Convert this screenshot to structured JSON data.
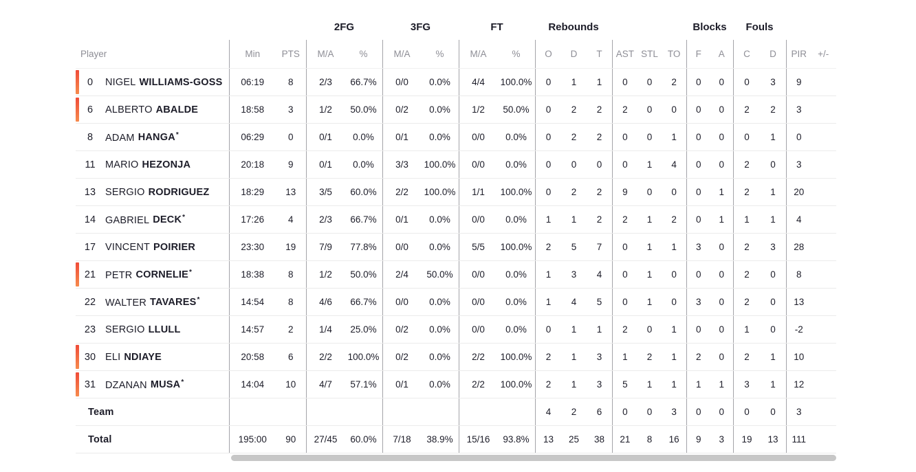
{
  "table": {
    "star_glyph": "*",
    "groups": {
      "fg2": "2FG",
      "fg3": "3FG",
      "ft": "FT",
      "rebounds": "Rebounds",
      "blocks": "Blocks",
      "fouls": "Fouls"
    },
    "col_headers": {
      "player": "Player",
      "min": "Min",
      "pts": "PTS",
      "ma": "M/A",
      "pct": "%",
      "reb_o": "O",
      "reb_d": "D",
      "reb_t": "T",
      "ast": "AST",
      "stl": "STL",
      "to": "TO",
      "blk_f": "F",
      "blk_a": "A",
      "foul_c": "C",
      "foul_d": "D",
      "pir": "PIR",
      "plus_minus": "+/-"
    },
    "rows": [
      {
        "num": "0",
        "first": "NIGEL",
        "last": "WILLIAMS-GOSS",
        "star": false,
        "on_court": true,
        "stats": {
          "min": "06:19",
          "pts": "8",
          "fg2_ma": "2/3",
          "fg2_pct": "66.7%",
          "fg3_ma": "0/0",
          "fg3_pct": "0.0%",
          "ft_ma": "4/4",
          "ft_pct": "100.0%",
          "reb_o": "0",
          "reb_d": "1",
          "reb_t": "1",
          "ast": "0",
          "stl": "0",
          "to": "2",
          "blk_f": "0",
          "blk_a": "0",
          "foul_c": "0",
          "foul_d": "3",
          "pir": "9",
          "plus_minus": ""
        }
      },
      {
        "num": "6",
        "first": "ALBERTO",
        "last": "ABALDE",
        "star": false,
        "on_court": true,
        "stats": {
          "min": "18:58",
          "pts": "3",
          "fg2_ma": "1/2",
          "fg2_pct": "50.0%",
          "fg3_ma": "0/2",
          "fg3_pct": "0.0%",
          "ft_ma": "1/2",
          "ft_pct": "50.0%",
          "reb_o": "0",
          "reb_d": "2",
          "reb_t": "2",
          "ast": "2",
          "stl": "0",
          "to": "0",
          "blk_f": "0",
          "blk_a": "0",
          "foul_c": "2",
          "foul_d": "2",
          "pir": "3",
          "plus_minus": ""
        }
      },
      {
        "num": "8",
        "first": "ADAM",
        "last": "HANGA",
        "star": true,
        "on_court": false,
        "stats": {
          "min": "06:29",
          "pts": "0",
          "fg2_ma": "0/1",
          "fg2_pct": "0.0%",
          "fg3_ma": "0/1",
          "fg3_pct": "0.0%",
          "ft_ma": "0/0",
          "ft_pct": "0.0%",
          "reb_o": "0",
          "reb_d": "2",
          "reb_t": "2",
          "ast": "0",
          "stl": "0",
          "to": "1",
          "blk_f": "0",
          "blk_a": "0",
          "foul_c": "0",
          "foul_d": "1",
          "pir": "0",
          "plus_minus": ""
        }
      },
      {
        "num": "11",
        "first": "MARIO",
        "last": "HEZONJA",
        "star": false,
        "on_court": false,
        "stats": {
          "min": "20:18",
          "pts": "9",
          "fg2_ma": "0/1",
          "fg2_pct": "0.0%",
          "fg3_ma": "3/3",
          "fg3_pct": "100.0%",
          "ft_ma": "0/0",
          "ft_pct": "0.0%",
          "reb_o": "0",
          "reb_d": "0",
          "reb_t": "0",
          "ast": "0",
          "stl": "1",
          "to": "4",
          "blk_f": "0",
          "blk_a": "0",
          "foul_c": "2",
          "foul_d": "0",
          "pir": "3",
          "plus_minus": ""
        }
      },
      {
        "num": "13",
        "first": "SERGIO",
        "last": "RODRIGUEZ",
        "star": false,
        "on_court": false,
        "stats": {
          "min": "18:29",
          "pts": "13",
          "fg2_ma": "3/5",
          "fg2_pct": "60.0%",
          "fg3_ma": "2/2",
          "fg3_pct": "100.0%",
          "ft_ma": "1/1",
          "ft_pct": "100.0%",
          "reb_o": "0",
          "reb_d": "2",
          "reb_t": "2",
          "ast": "9",
          "stl": "0",
          "to": "0",
          "blk_f": "0",
          "blk_a": "1",
          "foul_c": "2",
          "foul_d": "1",
          "pir": "20",
          "plus_minus": ""
        }
      },
      {
        "num": "14",
        "first": "GABRIEL",
        "last": "DECK",
        "star": true,
        "on_court": false,
        "stats": {
          "min": "17:26",
          "pts": "4",
          "fg2_ma": "2/3",
          "fg2_pct": "66.7%",
          "fg3_ma": "0/1",
          "fg3_pct": "0.0%",
          "ft_ma": "0/0",
          "ft_pct": "0.0%",
          "reb_o": "1",
          "reb_d": "1",
          "reb_t": "2",
          "ast": "2",
          "stl": "1",
          "to": "2",
          "blk_f": "0",
          "blk_a": "1",
          "foul_c": "1",
          "foul_d": "1",
          "pir": "4",
          "plus_minus": ""
        }
      },
      {
        "num": "17",
        "first": "VINCENT",
        "last": "POIRIER",
        "star": false,
        "on_court": false,
        "stats": {
          "min": "23:30",
          "pts": "19",
          "fg2_ma": "7/9",
          "fg2_pct": "77.8%",
          "fg3_ma": "0/0",
          "fg3_pct": "0.0%",
          "ft_ma": "5/5",
          "ft_pct": "100.0%",
          "reb_o": "2",
          "reb_d": "5",
          "reb_t": "7",
          "ast": "0",
          "stl": "1",
          "to": "1",
          "blk_f": "3",
          "blk_a": "0",
          "foul_c": "2",
          "foul_d": "3",
          "pir": "28",
          "plus_minus": ""
        }
      },
      {
        "num": "21",
        "first": "PETR",
        "last": "CORNELIE",
        "star": true,
        "on_court": true,
        "stats": {
          "min": "18:38",
          "pts": "8",
          "fg2_ma": "1/2",
          "fg2_pct": "50.0%",
          "fg3_ma": "2/4",
          "fg3_pct": "50.0%",
          "ft_ma": "0/0",
          "ft_pct": "0.0%",
          "reb_o": "1",
          "reb_d": "3",
          "reb_t": "4",
          "ast": "0",
          "stl": "1",
          "to": "0",
          "blk_f": "0",
          "blk_a": "0",
          "foul_c": "2",
          "foul_d": "0",
          "pir": "8",
          "plus_minus": ""
        }
      },
      {
        "num": "22",
        "first": "WALTER",
        "last": "TAVARES",
        "star": true,
        "on_court": false,
        "stats": {
          "min": "14:54",
          "pts": "8",
          "fg2_ma": "4/6",
          "fg2_pct": "66.7%",
          "fg3_ma": "0/0",
          "fg3_pct": "0.0%",
          "ft_ma": "0/0",
          "ft_pct": "0.0%",
          "reb_o": "1",
          "reb_d": "4",
          "reb_t": "5",
          "ast": "0",
          "stl": "1",
          "to": "0",
          "blk_f": "3",
          "blk_a": "0",
          "foul_c": "2",
          "foul_d": "0",
          "pir": "13",
          "plus_minus": ""
        }
      },
      {
        "num": "23",
        "first": "SERGIO",
        "last": "LLULL",
        "star": false,
        "on_court": false,
        "stats": {
          "min": "14:57",
          "pts": "2",
          "fg2_ma": "1/4",
          "fg2_pct": "25.0%",
          "fg3_ma": "0/2",
          "fg3_pct": "0.0%",
          "ft_ma": "0/0",
          "ft_pct": "0.0%",
          "reb_o": "0",
          "reb_d": "1",
          "reb_t": "1",
          "ast": "2",
          "stl": "0",
          "to": "1",
          "blk_f": "0",
          "blk_a": "0",
          "foul_c": "1",
          "foul_d": "0",
          "pir": "-2",
          "plus_minus": ""
        }
      },
      {
        "num": "30",
        "first": "ELI",
        "last": "NDIAYE",
        "star": false,
        "on_court": true,
        "stats": {
          "min": "20:58",
          "pts": "6",
          "fg2_ma": "2/2",
          "fg2_pct": "100.0%",
          "fg3_ma": "0/2",
          "fg3_pct": "0.0%",
          "ft_ma": "2/2",
          "ft_pct": "100.0%",
          "reb_o": "2",
          "reb_d": "1",
          "reb_t": "3",
          "ast": "1",
          "stl": "2",
          "to": "1",
          "blk_f": "2",
          "blk_a": "0",
          "foul_c": "2",
          "foul_d": "1",
          "pir": "10",
          "plus_minus": ""
        }
      },
      {
        "num": "31",
        "first": "DZANAN",
        "last": "MUSA",
        "star": true,
        "on_court": true,
        "stats": {
          "min": "14:04",
          "pts": "10",
          "fg2_ma": "4/7",
          "fg2_pct": "57.1%",
          "fg3_ma": "0/1",
          "fg3_pct": "0.0%",
          "ft_ma": "2/2",
          "ft_pct": "100.0%",
          "reb_o": "2",
          "reb_d": "1",
          "reb_t": "3",
          "ast": "5",
          "stl": "1",
          "to": "1",
          "blk_f": "1",
          "blk_a": "1",
          "foul_c": "3",
          "foul_d": "1",
          "pir": "12",
          "plus_minus": ""
        }
      },
      {
        "label": "Team",
        "star": false,
        "on_court": false,
        "stats": {
          "min": "",
          "pts": "",
          "fg2_ma": "",
          "fg2_pct": "",
          "fg3_ma": "",
          "fg3_pct": "",
          "ft_ma": "",
          "ft_pct": "",
          "reb_o": "4",
          "reb_d": "2",
          "reb_t": "6",
          "ast": "0",
          "stl": "0",
          "to": "3",
          "blk_f": "0",
          "blk_a": "0",
          "foul_c": "0",
          "foul_d": "0",
          "pir": "3",
          "plus_minus": ""
        }
      },
      {
        "label": "Total",
        "star": false,
        "on_court": false,
        "stats": {
          "min": "195:00",
          "pts": "90",
          "fg2_ma": "27/45",
          "fg2_pct": "60.0%",
          "fg3_ma": "7/18",
          "fg3_pct": "38.9%",
          "ft_ma": "15/16",
          "ft_pct": "93.8%",
          "reb_o": "13",
          "reb_d": "25",
          "reb_t": "38",
          "ast": "21",
          "stl": "8",
          "to": "16",
          "blk_f": "9",
          "blk_a": "3",
          "foul_c": "19",
          "foul_d": "13",
          "pir": "111",
          "plus_minus": ""
        }
      }
    ],
    "colors": {
      "on_court_indicator_top": "#f04b38",
      "on_court_indicator_bottom": "#f68b4d",
      "text_dark": "#1c1c28",
      "header_gray": "#8e8e96",
      "column_divider": "#a3a3a8",
      "row_divider": "#ebebeb",
      "scrollbar": "#c7c7c7"
    }
  }
}
